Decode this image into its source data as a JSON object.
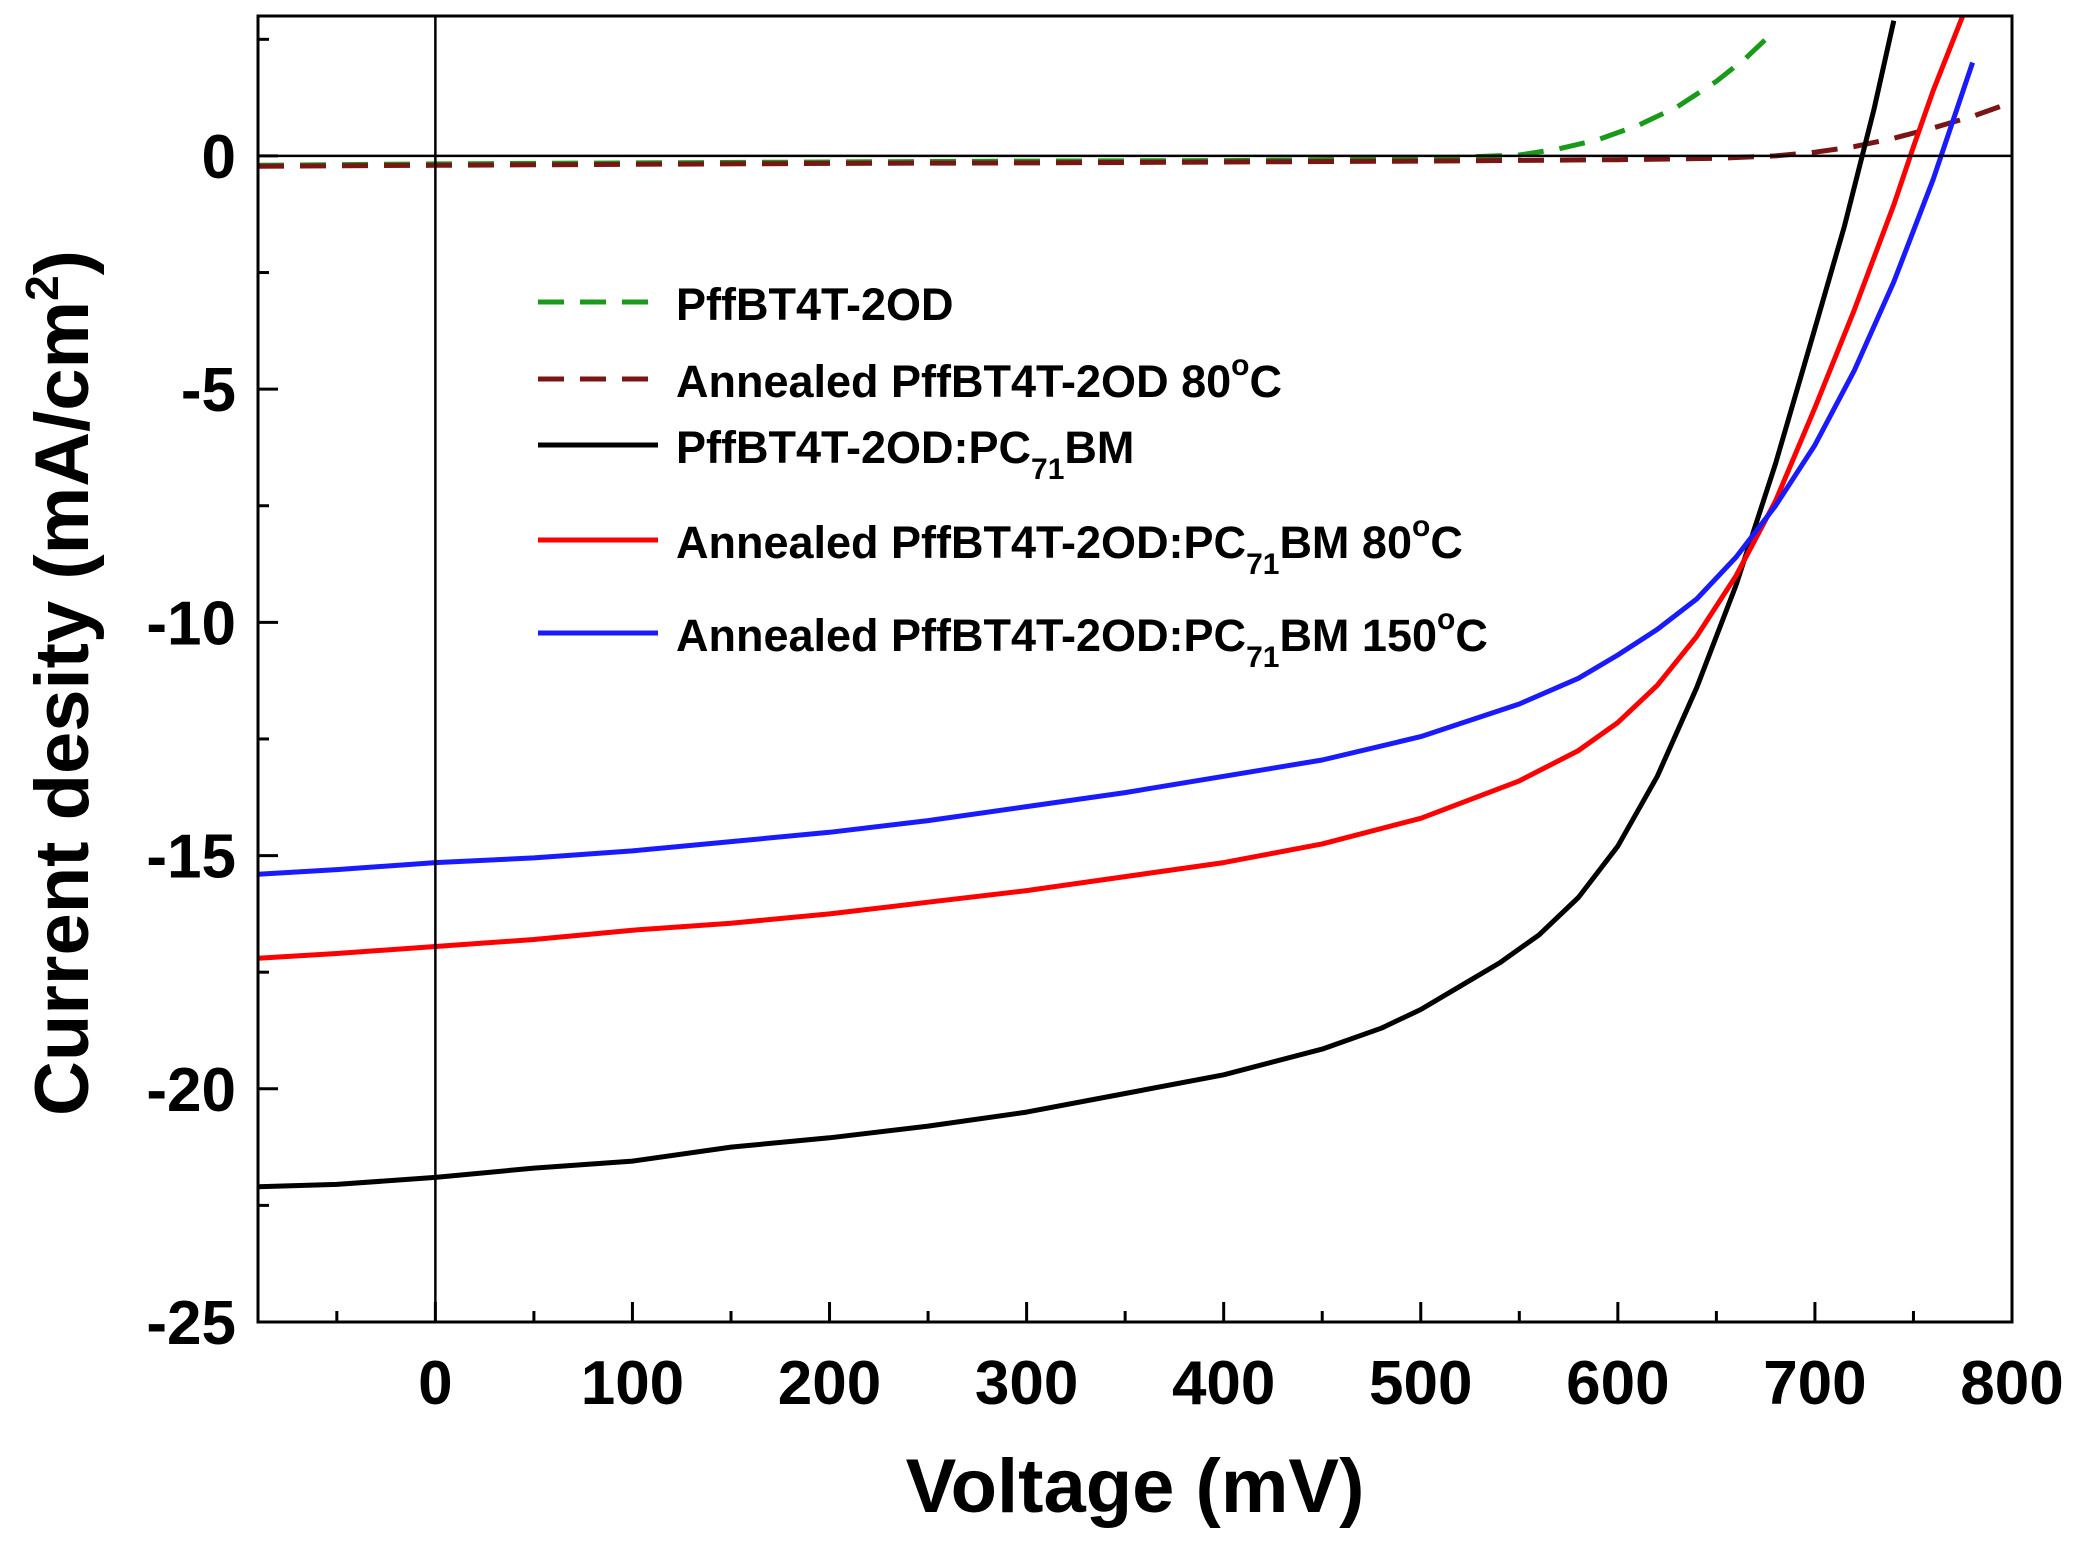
{
  "chart_data": {
    "type": "line",
    "title": "",
    "xlabel": "Voltage (mV)",
    "ylabel": "Current desity (mA/cm",
    "ylabel_sup": "2",
    "ylabel_tail": ")",
    "xlim": [
      -90,
      800
    ],
    "ylim": [
      -25,
      3
    ],
    "xticks": [
      0,
      100,
      200,
      300,
      400,
      500,
      600,
      700,
      800
    ],
    "xtick_labels": [
      "0",
      "100",
      "200",
      "300",
      "400",
      "500",
      "600",
      "700",
      "800"
    ],
    "yticks": [
      0,
      -5,
      -10,
      -15,
      -20,
      -25
    ],
    "ytick_labels": [
      "0",
      "-5",
      "-10",
      "-15",
      "-20",
      "-25"
    ],
    "grid": false,
    "legend_position": "upper-left",
    "reference_lines": {
      "x": 0,
      "y": 0
    },
    "series": [
      {
        "name": "PffBT4T-2OD",
        "label": [
          {
            "t": "PffBT4T-2OD"
          }
        ],
        "color": "#1a9a1a",
        "dash": true,
        "x": [
          -90,
          0,
          100,
          200,
          300,
          400,
          500,
          550,
          570,
          590,
          610,
          630,
          650,
          665,
          680
        ],
        "y": [
          -0.2,
          -0.17,
          -0.15,
          -0.13,
          -0.11,
          -0.1,
          -0.06,
          0.02,
          0.15,
          0.35,
          0.65,
          1.05,
          1.6,
          2.1,
          2.7
        ]
      },
      {
        "name": "Annealed PffBT4T-2OD 80°C",
        "label": [
          {
            "t": "Annealed PffBT4T-2OD 80"
          },
          {
            "t": "o",
            "sup": true
          },
          {
            "t": "C"
          }
        ],
        "color": "#7a1515",
        "dash": true,
        "x": [
          -90,
          0,
          100,
          200,
          300,
          400,
          500,
          600,
          650,
          680,
          700,
          720,
          740,
          760,
          780,
          800
        ],
        "y": [
          -0.22,
          -0.2,
          -0.18,
          -0.16,
          -0.15,
          -0.13,
          -0.11,
          -0.08,
          -0.05,
          0.0,
          0.08,
          0.2,
          0.38,
          0.6,
          0.85,
          1.15
        ]
      },
      {
        "name": "PffBT4T-2OD:PC71BM",
        "label": [
          {
            "t": "PffBT4T-2OD:PC"
          },
          {
            "t": "71",
            "sub": true
          },
          {
            "t": "BM"
          }
        ],
        "color": "#000000",
        "dash": false,
        "x": [
          -90,
          -50,
          0,
          50,
          100,
          150,
          200,
          250,
          300,
          350,
          400,
          450,
          480,
          500,
          520,
          540,
          560,
          580,
          600,
          620,
          640,
          660,
          680,
          700,
          715,
          730,
          740
        ],
        "y": [
          -22.1,
          -22.05,
          -21.9,
          -21.7,
          -21.55,
          -21.25,
          -21.05,
          -20.8,
          -20.5,
          -20.1,
          -19.7,
          -19.15,
          -18.7,
          -18.3,
          -17.8,
          -17.3,
          -16.7,
          -15.9,
          -14.8,
          -13.3,
          -11.4,
          -9.2,
          -6.6,
          -3.7,
          -1.5,
          1.0,
          2.9
        ]
      },
      {
        "name": "Annealed PffBT4T-2OD:PC71BM 80°C",
        "label": [
          {
            "t": "Annealed PffBT4T-2OD:PC"
          },
          {
            "t": "71",
            "sub": true
          },
          {
            "t": "BM 80"
          },
          {
            "t": "o",
            "sup": true
          },
          {
            "t": "C"
          }
        ],
        "color": "#ff0000",
        "dash": false,
        "x": [
          -90,
          -50,
          0,
          50,
          100,
          150,
          200,
          250,
          300,
          350,
          400,
          450,
          500,
          550,
          580,
          600,
          620,
          640,
          660,
          680,
          700,
          720,
          740,
          750,
          760,
          775
        ],
        "y": [
          -17.2,
          -17.1,
          -16.95,
          -16.8,
          -16.6,
          -16.45,
          -16.25,
          -16.0,
          -15.75,
          -15.45,
          -15.15,
          -14.75,
          -14.2,
          -13.4,
          -12.75,
          -12.15,
          -11.35,
          -10.3,
          -9.0,
          -7.4,
          -5.4,
          -3.3,
          -1.05,
          0.2,
          1.4,
          3.0
        ]
      },
      {
        "name": "Annealed PffBT4T-2OD:PC71BM 150°C",
        "label": [
          {
            "t": "Annealed PffBT4T-2OD:PC"
          },
          {
            "t": "71",
            "sub": true
          },
          {
            "t": "BM 150"
          },
          {
            "t": "o",
            "sup": true
          },
          {
            "t": "C"
          }
        ],
        "color": "#1a1aff",
        "dash": false,
        "x": [
          -90,
          -50,
          0,
          50,
          100,
          150,
          200,
          250,
          300,
          350,
          400,
          450,
          500,
          550,
          580,
          600,
          620,
          640,
          660,
          680,
          700,
          720,
          740,
          760,
          780
        ],
        "y": [
          -15.4,
          -15.3,
          -15.15,
          -15.05,
          -14.9,
          -14.7,
          -14.5,
          -14.25,
          -13.95,
          -13.65,
          -13.3,
          -12.95,
          -12.45,
          -11.75,
          -11.2,
          -10.7,
          -10.15,
          -9.5,
          -8.6,
          -7.5,
          -6.2,
          -4.6,
          -2.7,
          -0.5,
          2.0
        ]
      }
    ]
  }
}
